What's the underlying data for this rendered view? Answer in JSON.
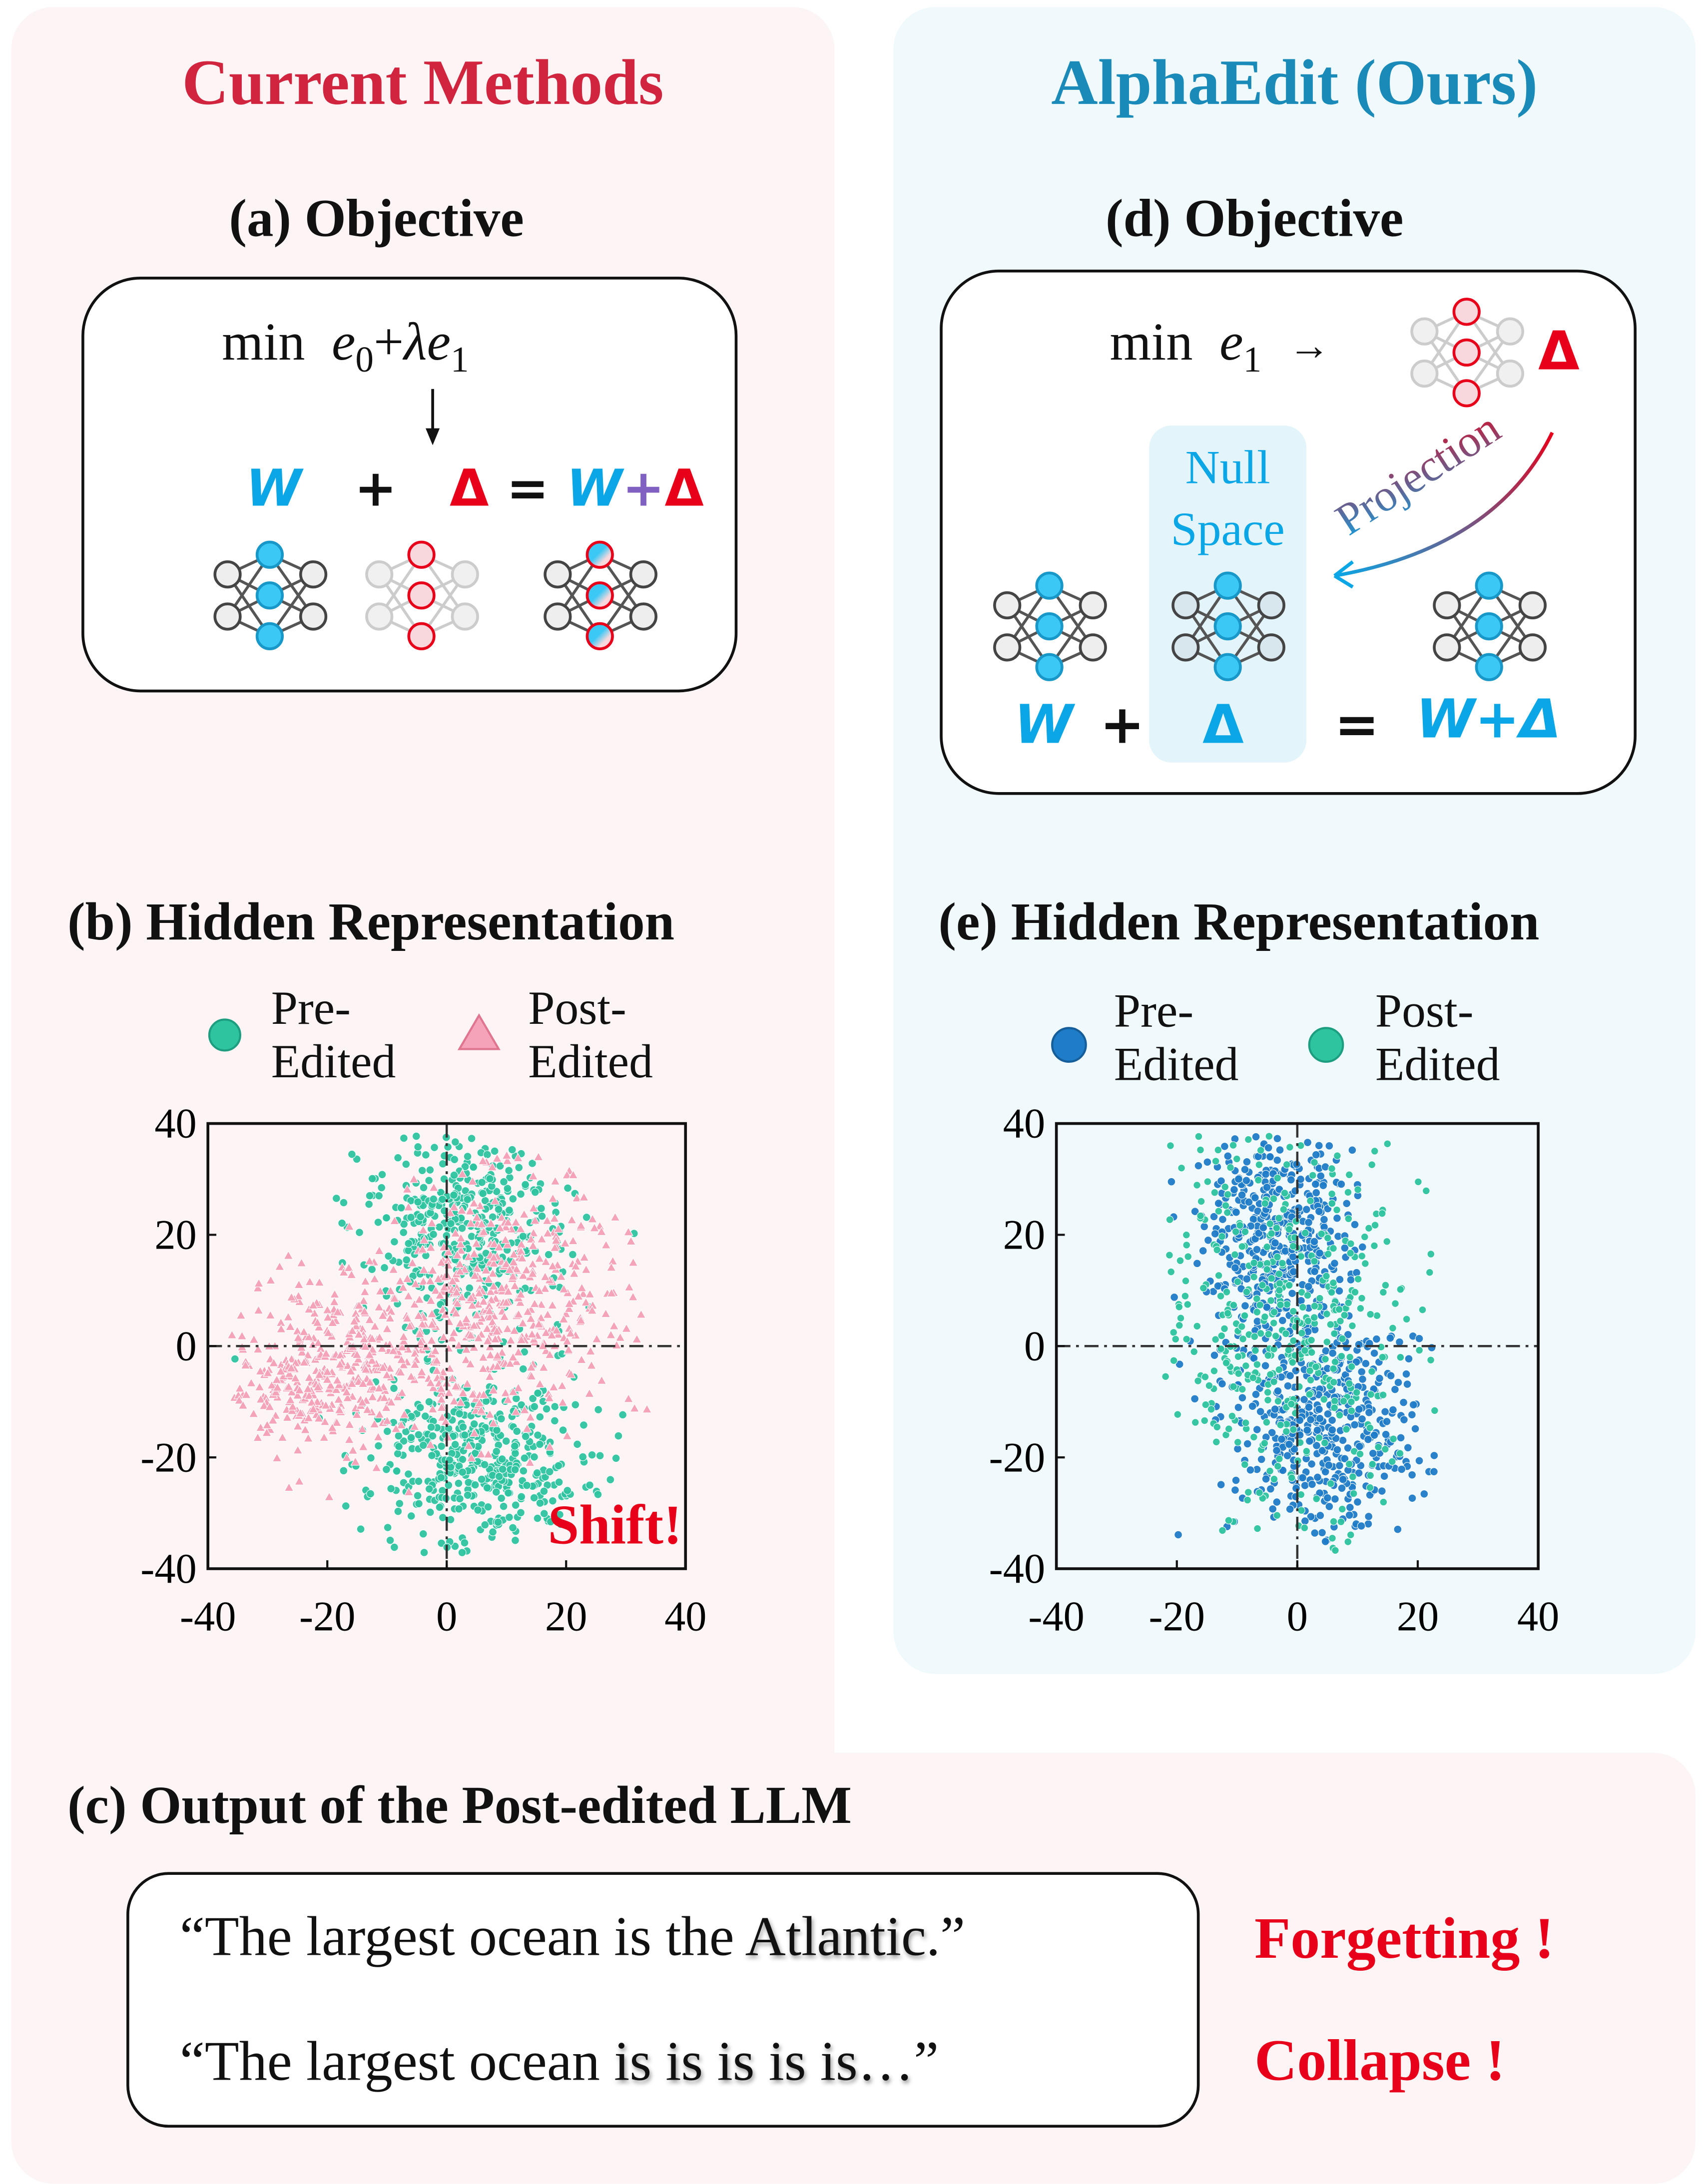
{
  "left": {
    "title": "Current Methods",
    "title_color": "#d0243f",
    "objective_heading": "(a) Objective",
    "objective": {
      "min": "min",
      "e0": "e",
      "e0_sub": "0",
      "plus": "+",
      "lambda": "λ",
      "e1": "e",
      "e1_sub": "1",
      "W": "W",
      "op_plus": "+",
      "delta": "Δ",
      "eq": "=",
      "W_sum": "W",
      "sum_plus": "+",
      "sum_delta": "Δ"
    },
    "hidden_heading": "(b) Hidden Representation",
    "legend": [
      {
        "label1": "Pre-",
        "label2": "Edited",
        "marker": "circle",
        "color": "#2ec4a0"
      },
      {
        "label1": "Post-",
        "label2": "Edited",
        "marker": "triangle",
        "color": "#f4a3b8"
      }
    ],
    "annotation": "Shift!"
  },
  "right": {
    "title": "AlphaEdit (Ours)",
    "title_color": "#1a8ab8",
    "objective_heading": "(d) Objective",
    "objective": {
      "min": "min",
      "e1": "e",
      "e1_sub": "1",
      "arrow": "→",
      "delta_top": "Δ",
      "projection": "Projection",
      "null1": "Null",
      "null2": "Space",
      "W": "W",
      "op_plus": "+",
      "delta": "Δ",
      "eq": "=",
      "W_sum": "W+Δ"
    },
    "hidden_heading": "(e) Hidden Representation",
    "legend": [
      {
        "label1": "Pre-",
        "label2": "Edited",
        "marker": "circle",
        "color": "#1f7cc8"
      },
      {
        "label1": "Post-",
        "label2": "Edited",
        "marker": "circle",
        "color": "#2ec4a0"
      }
    ]
  },
  "bottom": {
    "heading": "(c) Output of the Post-edited LLM",
    "lines": [
      {
        "prefix": "“The largest ocean is the ",
        "highlight": "Atlantic",
        "suffix": ".”",
        "label": "Forgetting !"
      },
      {
        "prefix": "“The largest ocean ",
        "highlight": "is is is is is…",
        "suffix": "”",
        "label": "Collapse !"
      }
    ]
  },
  "chart_data": [
    {
      "type": "scatter",
      "xlim": [
        -40,
        40
      ],
      "ylim": [
        -40,
        40
      ],
      "xticks": [
        "-40",
        "-20",
        "0",
        "20",
        "40"
      ],
      "yticks": [
        "40",
        "20",
        "0",
        "-20",
        "-40"
      ],
      "reference_lines": {
        "x": 0,
        "y": 0,
        "style": "dash-dot"
      },
      "grid": false,
      "legend_position": "top",
      "series": [
        {
          "name": "Pre-Edited",
          "marker": "circle",
          "color": "#2ec4a0",
          "clusters": [
            {
              "center": [
                3,
                22
              ],
              "spread": [
                9,
                10
              ]
            },
            {
              "center": [
                5,
                -20
              ],
              "spread": [
                9,
                8
              ]
            }
          ],
          "count": 900
        },
        {
          "name": "Post-Edited",
          "marker": "triangle",
          "color": "#f4a3b8",
          "clusters": [
            {
              "center": [
                -22,
                -5
              ],
              "spread": [
                7,
                7
              ]
            },
            {
              "center": [
                12,
                12
              ],
              "spread": [
                10,
                10
              ]
            },
            {
              "center": [
                0,
                0
              ],
              "spread": [
                12,
                9
              ]
            }
          ],
          "count": 900
        }
      ]
    },
    {
      "type": "scatter",
      "xlim": [
        -40,
        40
      ],
      "ylim": [
        -40,
        40
      ],
      "xticks": [
        "-40",
        "-20",
        "0",
        "20",
        "40"
      ],
      "yticks": [
        "40",
        "20",
        "0",
        "-20",
        "-40"
      ],
      "reference_lines": {
        "x": 0,
        "y": 0,
        "style": "dash-dot"
      },
      "grid": false,
      "legend_position": "top",
      "series": [
        {
          "name": "Pre-Edited",
          "marker": "circle",
          "color": "#1f7cc8",
          "clusters": [
            {
              "center": [
                -4,
                20
              ],
              "spread": [
                6,
                10
              ]
            },
            {
              "center": [
                4,
                -15
              ],
              "spread": [
                8,
                10
              ]
            }
          ],
          "count": 900
        },
        {
          "name": "Post-Edited",
          "marker": "circle",
          "color": "#2ec4a0",
          "clusters": [
            {
              "center": [
                -2,
                5
              ],
              "spread": [
                10,
                20
              ]
            }
          ],
          "count": 500
        }
      ]
    }
  ]
}
